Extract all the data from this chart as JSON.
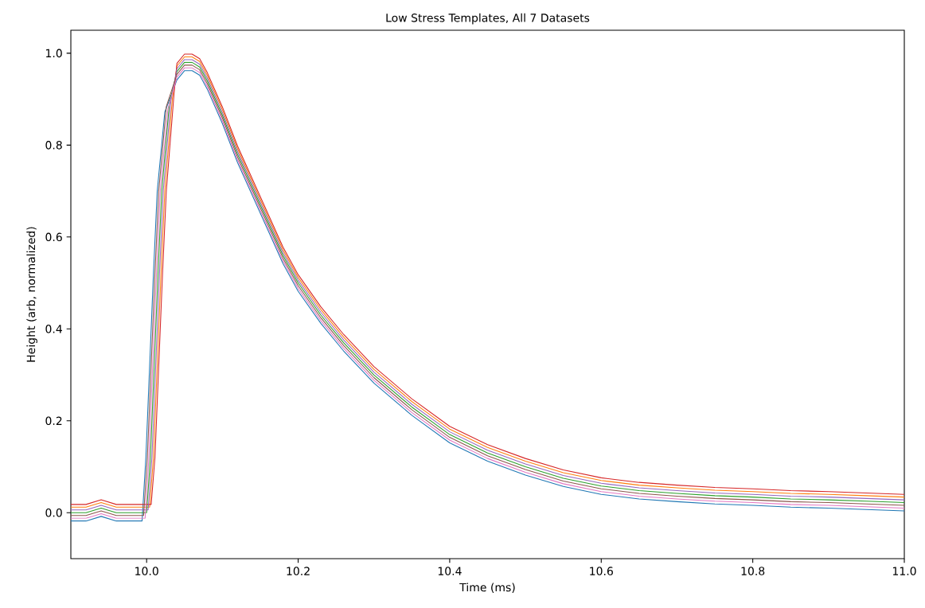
{
  "chart_data": {
    "type": "line",
    "title": "Low Stress Templates, All 7 Datasets",
    "xlabel": "Time (ms)",
    "ylabel": "Height (arb, normalized)",
    "xlim": [
      9.9,
      11.0
    ],
    "ylim": [
      -0.1,
      1.05
    ],
    "xticks": [
      {
        "value": 10.0,
        "label": "10.0"
      },
      {
        "value": 10.2,
        "label": "10.2"
      },
      {
        "value": 10.4,
        "label": "10.4"
      },
      {
        "value": 10.6,
        "label": "10.6"
      },
      {
        "value": 10.8,
        "label": "10.8"
      },
      {
        "value": 11.0,
        "label": "11.0"
      }
    ],
    "yticks": [
      {
        "value": 0.0,
        "label": "0.0"
      },
      {
        "value": 0.2,
        "label": "0.2"
      },
      {
        "value": 0.4,
        "label": "0.4"
      },
      {
        "value": 0.6,
        "label": "0.6"
      },
      {
        "value": 0.8,
        "label": "0.8"
      },
      {
        "value": 1.0,
        "label": "1.0"
      }
    ],
    "marker": "none",
    "line_style": "solid",
    "series": [
      {
        "color": "#1f77b4",
        "x": [
          9.9,
          9.92,
          9.94,
          9.96,
          9.98,
          9.994,
          9.999,
          10.004,
          10.009,
          10.014,
          10.024,
          10.04,
          10.05,
          10.06,
          10.07,
          10.08,
          10.1,
          10.12,
          10.15,
          10.18,
          10.2,
          10.23,
          10.26,
          10.3,
          10.35,
          10.4,
          10.45,
          10.5,
          10.55,
          10.6,
          10.65,
          10.7,
          10.75,
          10.8,
          10.85,
          10.9,
          10.95,
          11.0
        ],
        "values": [
          -0.018,
          -0.018,
          -0.008,
          -0.018,
          -0.018,
          -0.018,
          0.12,
          0.32,
          0.52,
          0.7,
          0.872,
          0.942,
          0.962,
          0.962,
          0.952,
          0.922,
          0.847,
          0.762,
          0.652,
          0.542,
          0.482,
          0.412,
          0.352,
          0.282,
          0.212,
          0.152,
          0.112,
          0.082,
          0.057,
          0.04,
          0.03,
          0.024,
          0.019,
          0.016,
          0.012,
          0.01,
          0.007,
          0.004
        ]
      },
      {
        "color": "#ff7f0e",
        "x": [
          9.9,
          9.92,
          9.94,
          9.96,
          9.98,
          10.004,
          10.009,
          10.014,
          10.019,
          10.024,
          10.034,
          10.04,
          10.05,
          10.06,
          10.07,
          10.08,
          10.1,
          10.12,
          10.15,
          10.18,
          10.2,
          10.23,
          10.26,
          10.3,
          10.35,
          10.4,
          10.45,
          10.5,
          10.55,
          10.6,
          10.65,
          10.7,
          10.75,
          10.8,
          10.85,
          10.9,
          10.95,
          11.0
        ],
        "values": [
          0.012,
          0.012,
          0.022,
          0.012,
          0.012,
          0.012,
          0.12,
          0.32,
          0.52,
          0.7,
          0.902,
          0.972,
          0.992,
          0.992,
          0.982,
          0.952,
          0.877,
          0.792,
          0.682,
          0.572,
          0.512,
          0.442,
          0.382,
          0.312,
          0.242,
          0.182,
          0.142,
          0.112,
          0.087,
          0.07,
          0.06,
          0.054,
          0.049,
          0.046,
          0.042,
          0.04,
          0.037,
          0.034
        ]
      },
      {
        "color": "#2ca02c",
        "x": [
          9.9,
          9.92,
          9.94,
          9.96,
          9.98,
          10.0,
          10.005,
          10.01,
          10.015,
          10.02,
          10.03,
          10.04,
          10.05,
          10.06,
          10.07,
          10.08,
          10.1,
          10.12,
          10.15,
          10.18,
          10.2,
          10.23,
          10.26,
          10.3,
          10.35,
          10.4,
          10.45,
          10.5,
          10.55,
          10.6,
          10.65,
          10.7,
          10.75,
          10.8,
          10.85,
          10.9,
          10.95,
          11.0
        ],
        "values": [
          0.0,
          0.0,
          0.01,
          0.0,
          0.0,
          0.0,
          0.12,
          0.32,
          0.52,
          0.7,
          0.89,
          0.96,
          0.98,
          0.98,
          0.97,
          0.94,
          0.865,
          0.78,
          0.67,
          0.56,
          0.5,
          0.43,
          0.37,
          0.3,
          0.23,
          0.17,
          0.13,
          0.1,
          0.075,
          0.058,
          0.048,
          0.042,
          0.037,
          0.034,
          0.03,
          0.028,
          0.025,
          0.022
        ]
      },
      {
        "color": "#d62728",
        "x": [
          9.9,
          9.92,
          9.94,
          9.96,
          9.98,
          10.006,
          10.011,
          10.016,
          10.021,
          10.026,
          10.036,
          10.04,
          10.05,
          10.06,
          10.07,
          10.08,
          10.1,
          10.12,
          10.15,
          10.18,
          10.2,
          10.23,
          10.26,
          10.3,
          10.35,
          10.4,
          10.45,
          10.5,
          10.55,
          10.6,
          10.65,
          10.7,
          10.75,
          10.8,
          10.85,
          10.9,
          10.95,
          11.0
        ],
        "values": [
          0.018,
          0.018,
          0.028,
          0.018,
          0.018,
          0.018,
          0.12,
          0.32,
          0.52,
          0.7,
          0.908,
          0.978,
          0.998,
          0.998,
          0.988,
          0.958,
          0.883,
          0.798,
          0.688,
          0.578,
          0.518,
          0.448,
          0.388,
          0.318,
          0.248,
          0.188,
          0.148,
          0.118,
          0.093,
          0.076,
          0.066,
          0.06,
          0.055,
          0.052,
          0.048,
          0.046,
          0.043,
          0.04
        ]
      },
      {
        "color": "#9467bd",
        "x": [
          9.9,
          9.92,
          9.94,
          9.96,
          9.98,
          10.002,
          10.007,
          10.012,
          10.017,
          10.022,
          10.032,
          10.04,
          10.05,
          10.06,
          10.07,
          10.08,
          10.1,
          10.12,
          10.15,
          10.18,
          10.2,
          10.23,
          10.26,
          10.3,
          10.35,
          10.4,
          10.45,
          10.5,
          10.55,
          10.6,
          10.65,
          10.7,
          10.75,
          10.8,
          10.85,
          10.9,
          10.95,
          11.0
        ],
        "values": [
          0.006,
          0.006,
          0.016,
          0.006,
          0.006,
          0.006,
          0.12,
          0.32,
          0.52,
          0.7,
          0.896,
          0.966,
          0.986,
          0.986,
          0.976,
          0.946,
          0.871,
          0.786,
          0.676,
          0.566,
          0.506,
          0.436,
          0.376,
          0.306,
          0.236,
          0.176,
          0.136,
          0.106,
          0.081,
          0.064,
          0.054,
          0.048,
          0.043,
          0.04,
          0.036,
          0.034,
          0.031,
          0.028
        ]
      },
      {
        "color": "#8c564b",
        "x": [
          9.9,
          9.92,
          9.94,
          9.96,
          9.98,
          9.996,
          10.001,
          10.006,
          10.011,
          10.016,
          10.026,
          10.04,
          10.05,
          10.06,
          10.07,
          10.08,
          10.1,
          10.12,
          10.15,
          10.18,
          10.2,
          10.23,
          10.26,
          10.3,
          10.35,
          10.4,
          10.45,
          10.5,
          10.55,
          10.6,
          10.65,
          10.7,
          10.75,
          10.8,
          10.85,
          10.9,
          10.95,
          11.0
        ],
        "values": [
          -0.006,
          -0.006,
          0.004,
          -0.006,
          -0.006,
          -0.006,
          0.12,
          0.32,
          0.52,
          0.7,
          0.884,
          0.954,
          0.974,
          0.974,
          0.964,
          0.934,
          0.859,
          0.774,
          0.664,
          0.554,
          0.494,
          0.424,
          0.364,
          0.294,
          0.224,
          0.164,
          0.124,
          0.094,
          0.069,
          0.052,
          0.042,
          0.036,
          0.031,
          0.028,
          0.024,
          0.022,
          0.019,
          0.016
        ]
      },
      {
        "color": "#e377c2",
        "x": [
          9.9,
          9.92,
          9.94,
          9.96,
          9.98,
          9.998,
          10.003,
          10.008,
          10.013,
          10.018,
          10.028,
          10.04,
          10.05,
          10.06,
          10.07,
          10.08,
          10.1,
          10.12,
          10.15,
          10.18,
          10.2,
          10.23,
          10.26,
          10.3,
          10.35,
          10.4,
          10.45,
          10.5,
          10.55,
          10.6,
          10.65,
          10.7,
          10.75,
          10.8,
          10.85,
          10.9,
          10.95,
          11.0
        ],
        "values": [
          -0.012,
          -0.012,
          -0.002,
          -0.012,
          -0.012,
          -0.012,
          0.12,
          0.32,
          0.52,
          0.7,
          0.878,
          0.948,
          0.968,
          0.968,
          0.958,
          0.928,
          0.853,
          0.768,
          0.658,
          0.548,
          0.488,
          0.418,
          0.358,
          0.288,
          0.218,
          0.158,
          0.118,
          0.088,
          0.063,
          0.046,
          0.036,
          0.03,
          0.025,
          0.022,
          0.018,
          0.016,
          0.013,
          0.01
        ]
      }
    ]
  }
}
